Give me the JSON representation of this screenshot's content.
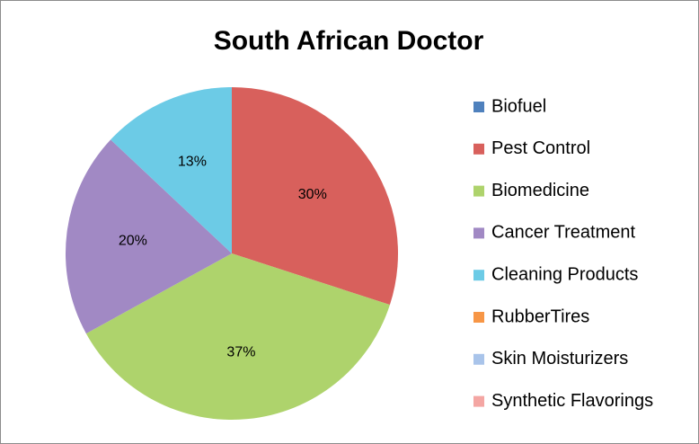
{
  "chart_data": {
    "type": "pie",
    "title": "South African Doctor",
    "categories": [
      "Biofuel",
      "Pest Control",
      "Biomedicine",
      "Cancer Treatment",
      "Cleaning Products",
      "RubberTires",
      "Skin Moisturizers",
      "Synthetic Flavorings"
    ],
    "values": [
      0,
      30,
      37,
      20,
      13,
      0,
      0,
      0
    ],
    "value_labels": [
      null,
      "30%",
      "37%",
      "20%",
      "13%",
      null,
      null,
      null
    ],
    "colors": [
      "#4f81bd",
      "#d8605c",
      "#aed36c",
      "#a189c4",
      "#6ccbe6",
      "#f79646",
      "#a9c4ea",
      "#f4a6a3"
    ],
    "legend": "right"
  }
}
